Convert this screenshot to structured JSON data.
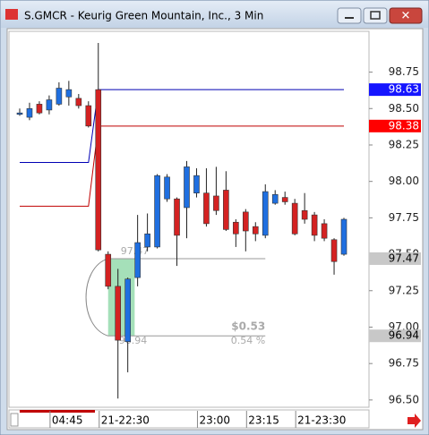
{
  "window": {
    "title": "S.GMCR - Keurig Green Mountain, Inc., 3 Min"
  },
  "chart_data": {
    "type": "candlestick",
    "categories": [
      null,
      null,
      null,
      "04:45",
      null,
      null,
      null,
      null,
      "21-22:30",
      null,
      null,
      null,
      null,
      null,
      null,
      null,
      null,
      null,
      "23:00",
      null,
      null,
      null,
      null,
      "23:15",
      null,
      null,
      null,
      null,
      "21-23:30",
      null,
      null,
      null,
      null,
      null
    ],
    "open": [
      98.46,
      98.44,
      98.53,
      98.49,
      98.53,
      98.58,
      98.57,
      98.52,
      98.63,
      97.5,
      97.28,
      96.9,
      97.34,
      97.55,
      97.55,
      97.88,
      97.88,
      97.82,
      97.92,
      97.92,
      97.9,
      97.94,
      97.72,
      97.79,
      97.69,
      97.63,
      97.85,
      97.89,
      97.85,
      97.8,
      97.77,
      97.71,
      97.6,
      97.5
    ],
    "high": [
      98.5,
      98.54,
      98.55,
      98.59,
      98.68,
      98.69,
      98.6,
      98.55,
      98.95,
      97.52,
      97.4,
      97.34,
      97.77,
      97.78,
      98.05,
      98.05,
      97.89,
      98.14,
      98.09,
      98.09,
      98.1,
      98.07,
      97.74,
      97.81,
      97.72,
      97.98,
      97.94,
      97.93,
      97.88,
      97.92,
      97.79,
      97.74,
      97.61,
      97.75
    ],
    "low": [
      98.45,
      98.42,
      98.46,
      98.46,
      98.52,
      98.52,
      98.5,
      98.37,
      97.52,
      97.26,
      96.51,
      96.69,
      97.28,
      97.52,
      97.54,
      97.86,
      97.42,
      97.61,
      97.89,
      97.69,
      97.77,
      97.66,
      97.55,
      97.52,
      97.59,
      97.61,
      97.84,
      97.84,
      97.63,
      97.71,
      97.59,
      97.59,
      97.36,
      97.49
    ],
    "close": [
      98.47,
      98.5,
      98.47,
      98.56,
      98.64,
      98.63,
      98.52,
      98.38,
      97.53,
      97.28,
      96.91,
      97.33,
      97.58,
      97.64,
      98.04,
      98.03,
      97.63,
      98.1,
      98.04,
      97.71,
      97.8,
      97.67,
      97.64,
      97.66,
      97.64,
      97.93,
      97.91,
      97.86,
      97.64,
      97.74,
      97.63,
      97.61,
      97.45,
      97.74
    ],
    "up_color": "#1f6fe0",
    "down_color": "#d42222",
    "series": [
      {
        "color": "#0000b4",
        "values": [
          98.13,
          98.13,
          98.13,
          98.13,
          98.13,
          98.13,
          98.13,
          98.13,
          98.63,
          98.63,
          98.63,
          98.63,
          98.63,
          98.63,
          98.63,
          98.63,
          98.63,
          98.63,
          98.63,
          98.63,
          98.63,
          98.63,
          98.63,
          98.63,
          98.63,
          98.63,
          98.63,
          98.63,
          98.63,
          98.63,
          98.63,
          98.63,
          98.63,
          98.63
        ]
      },
      {
        "color": "#c00000",
        "values": [
          97.83,
          97.83,
          97.83,
          97.83,
          97.83,
          97.83,
          97.83,
          97.83,
          98.38,
          98.38,
          98.38,
          98.38,
          98.38,
          98.38,
          98.38,
          98.38,
          98.38,
          98.38,
          98.38,
          98.38,
          98.38,
          98.38,
          98.38,
          98.38,
          98.38,
          98.38,
          98.38,
          98.38,
          98.38,
          98.38,
          98.38,
          98.38,
          98.38,
          98.38
        ]
      }
    ],
    "measure": {
      "high": 97.47,
      "low": 96.94,
      "change_label": "$0.53",
      "percent_label": "0.54 %"
    },
    "ylim": [
      96.45,
      99.03
    ],
    "yticks": [
      {
        "value": 96.5,
        "label": "96.50"
      },
      96.75,
      {
        "value": 97,
        "label": "97.00"
      },
      97.25,
      {
        "value": 97.5,
        "label": "97.50"
      },
      97.75,
      {
        "value": 98,
        "label": "98.00"
      },
      98.25,
      {
        "value": 98.5,
        "label": "98.50"
      },
      98.75
    ]
  }
}
